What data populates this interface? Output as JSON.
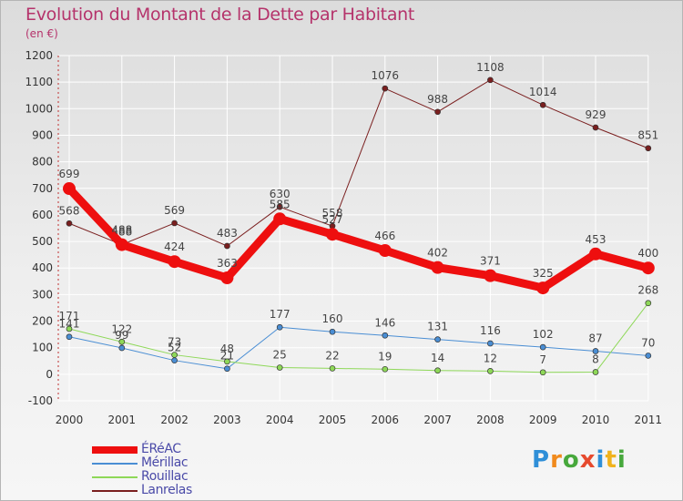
{
  "header": {
    "title": "Evolution du Montant de la Dette par Habitant",
    "subtitle": "(en €)"
  },
  "logo": {
    "letters": [
      "P",
      "r",
      "o",
      "x",
      "i",
      "t",
      "i"
    ],
    "colors": [
      "#2f8fd8",
      "#f08a1d",
      "#47a83c",
      "#e64a2e",
      "#2f8fd8",
      "#f0b21d",
      "#47a83c"
    ]
  },
  "chart_data": {
    "type": "line",
    "title": "Evolution du Montant de la Dette par Habitant",
    "subtitle": "(en €)",
    "categories": [
      "2000",
      "2001",
      "2002",
      "2003",
      "2004",
      "2005",
      "2006",
      "2007",
      "2008",
      "2009",
      "2010",
      "2011"
    ],
    "ylim": [
      -100,
      1200
    ],
    "yticks": [
      -100,
      0,
      100,
      200,
      300,
      400,
      500,
      600,
      700,
      800,
      900,
      1000,
      1100,
      1200
    ],
    "grid": true,
    "legend_position": "bottom-left",
    "series": [
      {
        "name": "Lanrelas",
        "color": "#7a1f1f",
        "width": "thin",
        "values": [
          568,
          488,
          569,
          483,
          630,
          558,
          1076,
          988,
          1108,
          1014,
          929,
          851
        ],
        "labels": [
          "568",
          "488",
          "569",
          "483",
          "630",
          "558",
          "1076",
          "988",
          "1108",
          "1014",
          "929",
          "851"
        ]
      },
      {
        "name": "Mérillac",
        "color": "#4a8ed4",
        "width": "thin",
        "values": [
          141,
          99,
          52,
          21,
          177,
          160,
          146,
          131,
          116,
          102,
          87,
          70
        ],
        "labels": [
          "141",
          "99",
          "52",
          "21",
          "177",
          "160",
          "146",
          "131",
          "116",
          "102",
          "87",
          "70"
        ]
      },
      {
        "name": "Rouillac",
        "color": "#8ed858",
        "width": "thin",
        "values": [
          171,
          122,
          73,
          48,
          25,
          22,
          19,
          14,
          12,
          7,
          8,
          268
        ],
        "labels": [
          "171",
          "122",
          "73",
          "48",
          "25",
          "22",
          "19",
          "14",
          "12",
          "7",
          "8",
          "268"
        ]
      },
      {
        "name": "ÉRéAC",
        "color": "#ee0f0f",
        "width": "thick",
        "values": [
          699,
          488,
          424,
          363,
          585,
          527,
          466,
          402,
          371,
          325,
          453,
          400
        ],
        "labels": [
          "699",
          "488",
          "424",
          "363",
          "585",
          "527",
          "466",
          "402",
          "371",
          "325",
          "453",
          "400"
        ]
      }
    ],
    "legend": [
      "ÉRéAC",
      "Mérillac",
      "Rouillac",
      "Lanrelas"
    ]
  }
}
